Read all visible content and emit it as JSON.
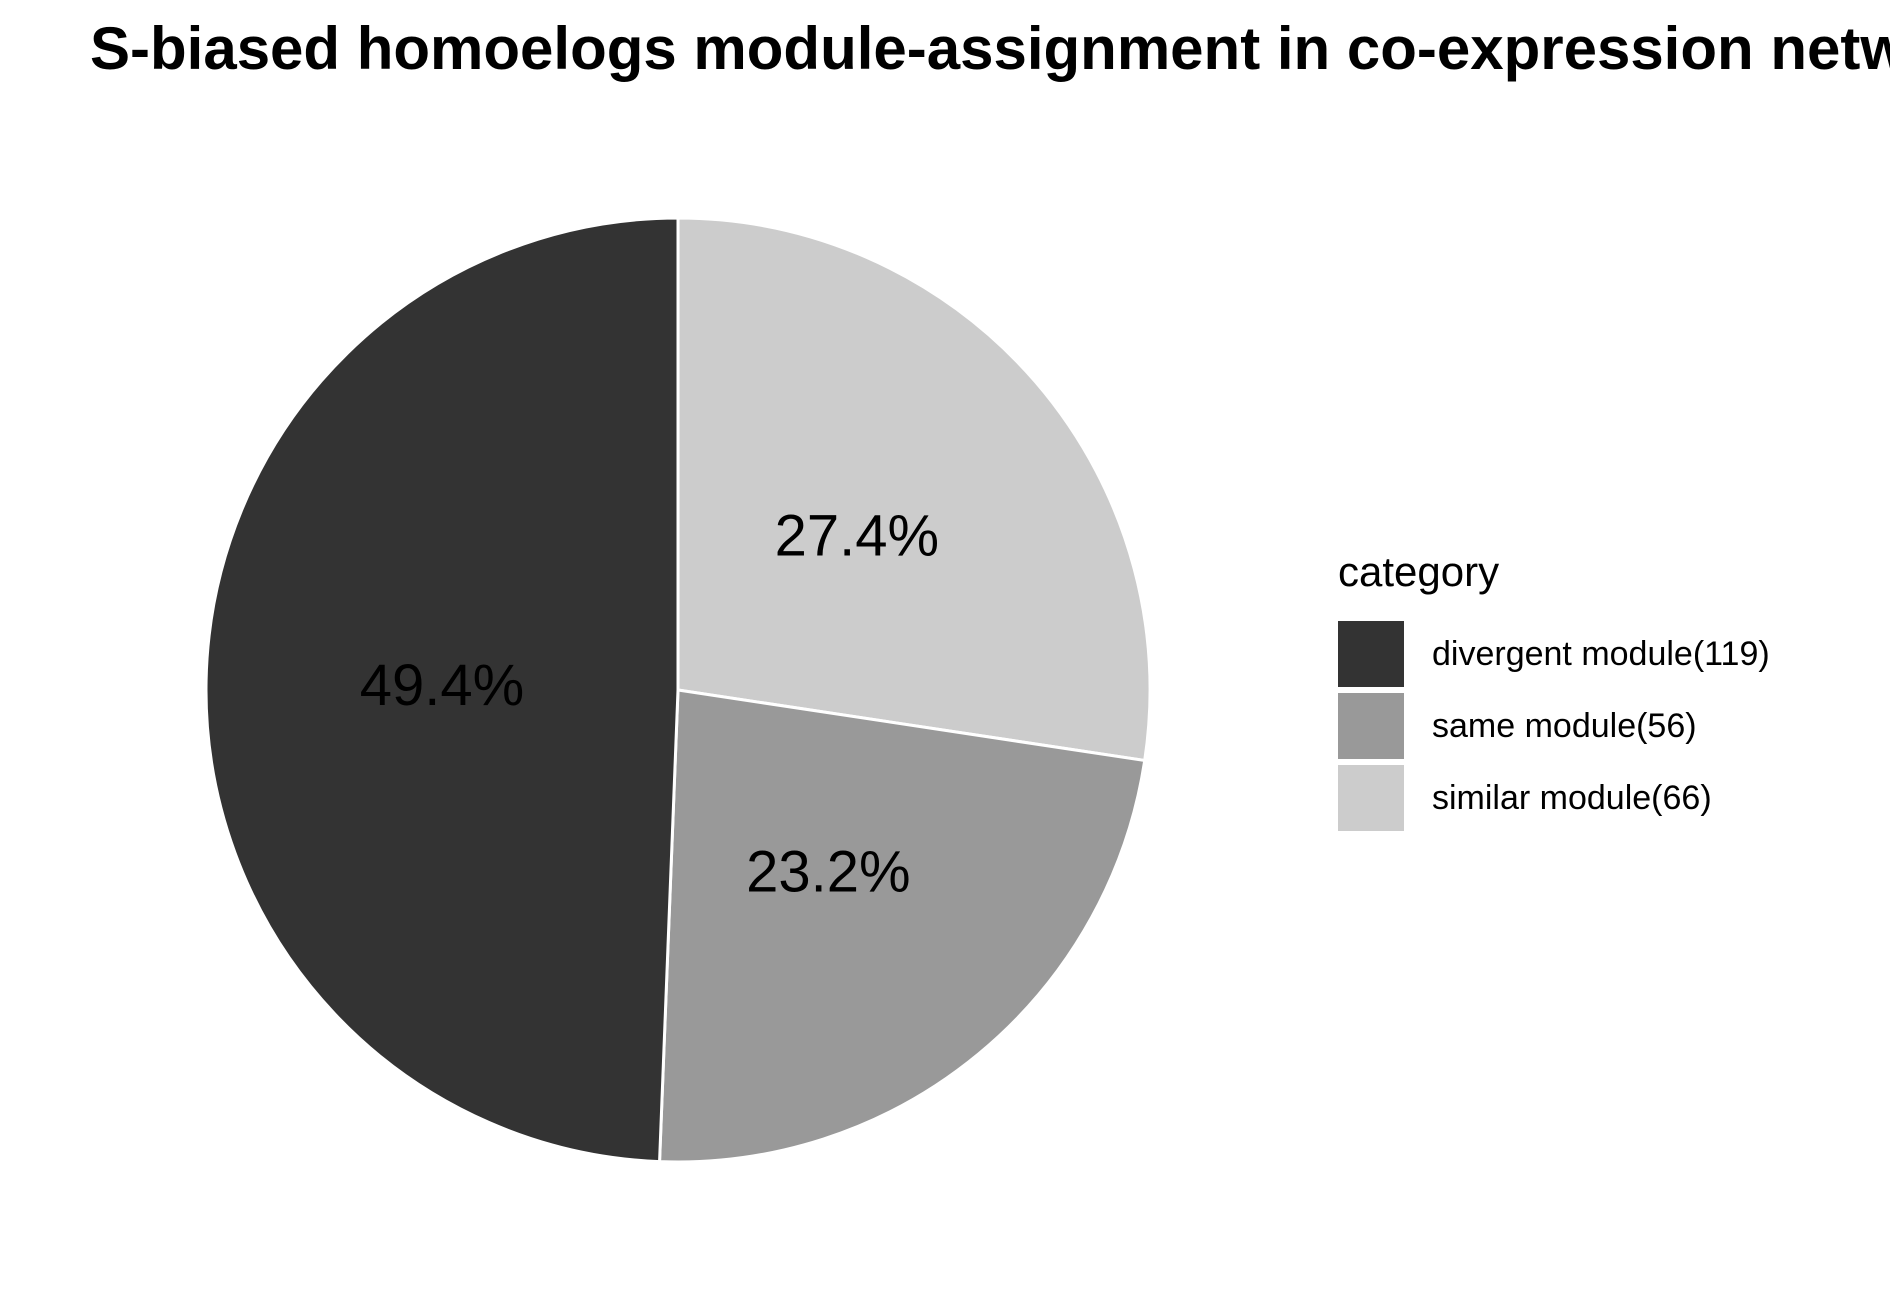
{
  "chart_data": {
    "type": "pie",
    "title": "S-biased homoelogs module-assignment in co-expression networ",
    "legend_title": "category",
    "legend_position": "right",
    "slices": [
      {
        "label": "divergent module(119)",
        "value": 119,
        "percent_label": "49.4%",
        "color": "#333333"
      },
      {
        "label": "same module(56)",
        "value": 56,
        "percent_label": "23.2%",
        "color": "#999999"
      },
      {
        "label": "similar module(66)",
        "value": 66,
        "percent_label": "27.4%",
        "color": "#cccccc"
      }
    ]
  }
}
